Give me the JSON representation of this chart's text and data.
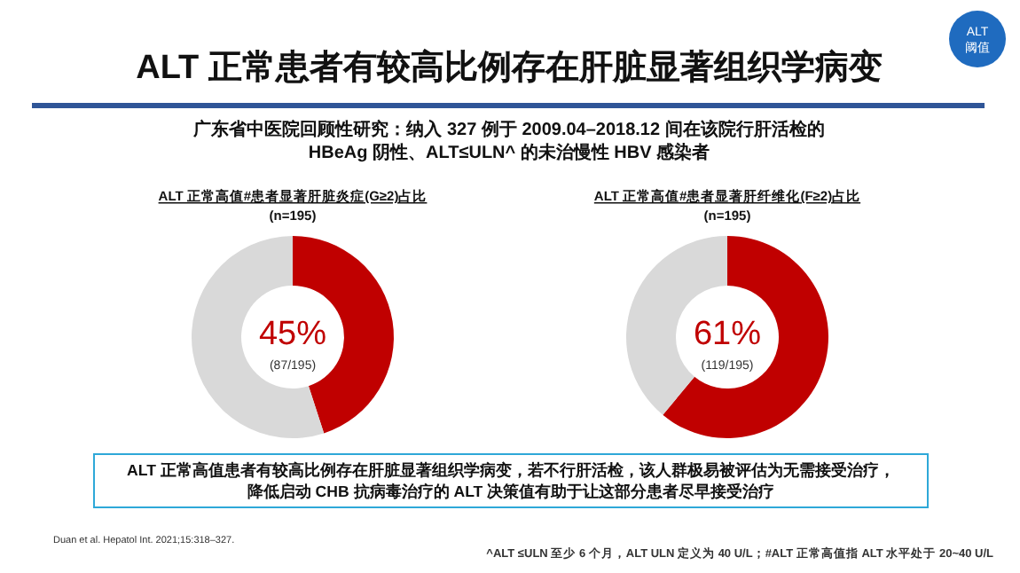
{
  "chart_data": [
    {
      "type": "other",
      "title": "ALT 正常患者有较高比例存在肝脏显著组织学病变",
      "subtitle": "广东省中医院回顾性研究：纳入 327 例于 2009.04–2018.12 间在该院行肝活检的\nHBeAg 阴性、ALT≤ULN^ 的未治慢性 HBV 感染者",
      "annotations": [
        "ALT\n阈值",
        "ALT 正常高值患者有较高比例存在肝脏显著组织学病变，若不行肝活检，该人群极易被评估为无需接受治疗，",
        "降低启动 CHB 抗病毒治疗的 ALT 决策值有助于让这部分患者尽早接受治疗",
        "Duan et al. Hepatol Int. 2021;15:318–327.",
        "^ALT ≤ULN 至少 6 个月，ALT ULN 定义为 40 U/L；#ALT 正常高值指 ALT 水平处于 20~40 U/L"
      ]
    },
    {
      "type": "donut",
      "title": "ALT 正常高值#患者显著肝脏炎症(G≥2)占比",
      "subtitle": "(n=195)",
      "categories": [
        null,
        null
      ],
      "values": [
        45,
        55
      ],
      "colors": [
        "#c00000",
        "#d9d9d9"
      ],
      "value_labels": [
        "45%",
        null
      ],
      "annotations": [
        "(87/195)"
      ]
    },
    {
      "type": "donut",
      "title": "ALT 正常高值#患者显著肝纤维化(F≥2)占比",
      "subtitle": "(n=195)",
      "categories": [
        null,
        null
      ],
      "values": [
        61,
        39
      ],
      "colors": [
        "#c00000",
        "#d9d9d9"
      ],
      "value_labels": [
        "61%",
        null
      ],
      "annotations": [
        "(119/195)"
      ]
    }
  ]
}
